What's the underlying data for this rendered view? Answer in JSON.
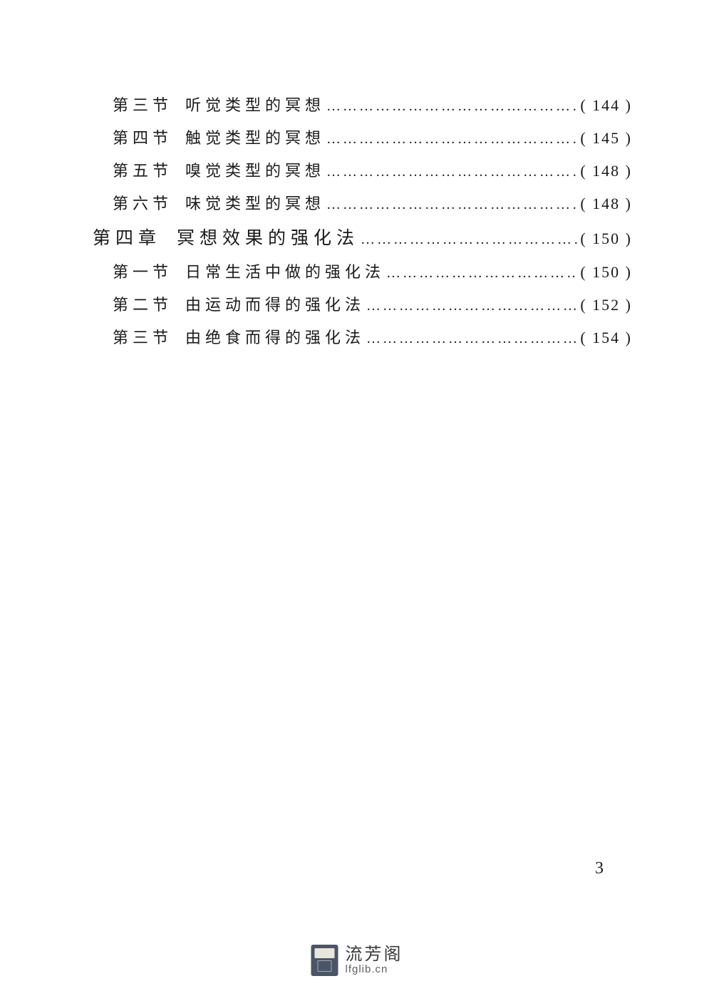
{
  "colors": {
    "text": "#1a1a1a",
    "background": "#ffffff",
    "watermark_text": "#3a3a3a",
    "watermark_url": "#606060",
    "watermark_icon_bg": "#4a5568"
  },
  "typography": {
    "body_fontsize": 22,
    "chapter_fontsize": 25,
    "letter_spacing_section": 6,
    "letter_spacing_chapter": 7,
    "font_family": "SimSun"
  },
  "toc": [
    {
      "level": "section",
      "label": "第三节",
      "title": "听觉类型的冥想",
      "page": "144"
    },
    {
      "level": "section",
      "label": "第四节",
      "title": "触觉类型的冥想",
      "page": "145"
    },
    {
      "level": "section",
      "label": "第五节",
      "title": "嗅觉类型的冥想",
      "page": "148"
    },
    {
      "level": "section",
      "label": "第六节",
      "title": "味觉类型的冥想",
      "page": "148"
    },
    {
      "level": "chapter",
      "label": "第四章",
      "title": "冥想效果的强化法",
      "page": "150"
    },
    {
      "level": "section",
      "label": "第一节",
      "title": "日常生活中做的强化法",
      "page": "150"
    },
    {
      "level": "section",
      "label": "第二节",
      "title": "由运动而得的强化法",
      "page": "152"
    },
    {
      "level": "section",
      "label": "第三节",
      "title": "由绝食而得的强化法",
      "page": "154"
    }
  ],
  "dots_fill": "……………………………………………………………………",
  "page_number": "3",
  "watermark": {
    "name_cn": "流芳阁",
    "url": "lfglib.cn"
  }
}
